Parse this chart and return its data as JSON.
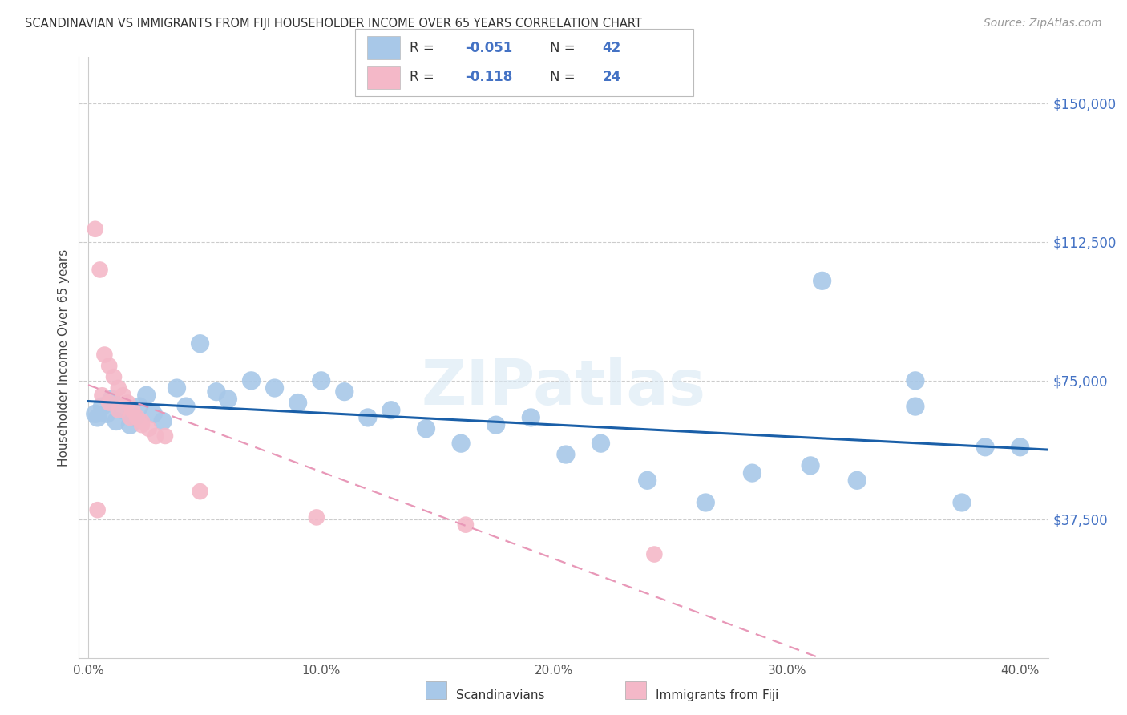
{
  "title": "SCANDINAVIAN VS IMMIGRANTS FROM FIJI HOUSEHOLDER INCOME OVER 65 YEARS CORRELATION CHART",
  "source": "Source: ZipAtlas.com",
  "ylabel": "Householder Income Over 65 years",
  "xlabel_ticks": [
    "0.0%",
    "10.0%",
    "20.0%",
    "30.0%",
    "40.0%"
  ],
  "xlabel_vals": [
    0.0,
    0.1,
    0.2,
    0.3,
    0.4
  ],
  "ytick_labels": [
    "$37,500",
    "$75,000",
    "$112,500",
    "$150,000"
  ],
  "ytick_vals": [
    37500,
    75000,
    112500,
    150000
  ],
  "ylim": [
    0,
    162500
  ],
  "xlim": [
    -0.004,
    0.412
  ],
  "watermark": "ZIPatlas",
  "legend1_color": "#a8c8e8",
  "legend2_color": "#f4b8c8",
  "legend1_label": "Scandinavians",
  "legend2_label": "Immigrants from Fiji",
  "R1": "-0.051",
  "N1": "42",
  "R2": "-0.118",
  "N2": "24",
  "trendline1_color": "#1a5fa8",
  "trendline2_color": "#e898b8",
  "scatter1_color": "#a8c8e8",
  "scatter2_color": "#f4b8c8",
  "scand_x": [
    0.004,
    0.006,
    0.008,
    0.01,
    0.012,
    0.015,
    0.018,
    0.02,
    0.022,
    0.025,
    0.028,
    0.032,
    0.038,
    0.042,
    0.048,
    0.055,
    0.06,
    0.07,
    0.08,
    0.09,
    0.1,
    0.11,
    0.12,
    0.13,
    0.145,
    0.16,
    0.175,
    0.19,
    0.205,
    0.22,
    0.24,
    0.265,
    0.285,
    0.31,
    0.33,
    0.355,
    0.375,
    0.4,
    0.003,
    0.315,
    0.355,
    0.385
  ],
  "scand_y": [
    65000,
    68000,
    66000,
    70000,
    64000,
    67000,
    63000,
    65000,
    68000,
    71000,
    66000,
    64000,
    73000,
    68000,
    85000,
    72000,
    70000,
    75000,
    73000,
    69000,
    75000,
    72000,
    65000,
    67000,
    62000,
    58000,
    63000,
    65000,
    55000,
    58000,
    48000,
    42000,
    50000,
    52000,
    48000,
    68000,
    42000,
    57000,
    66000,
    102000,
    75000,
    57000
  ],
  "fiji_x": [
    0.003,
    0.005,
    0.007,
    0.009,
    0.011,
    0.013,
    0.015,
    0.017,
    0.019,
    0.021,
    0.023,
    0.026,
    0.029,
    0.033,
    0.004,
    0.006,
    0.009,
    0.013,
    0.018,
    0.023,
    0.048,
    0.098,
    0.162,
    0.243
  ],
  "fiji_y": [
    116000,
    105000,
    82000,
    79000,
    76000,
    73000,
    71000,
    69000,
    67000,
    65000,
    64000,
    62000,
    60000,
    60000,
    40000,
    71000,
    69000,
    67000,
    65000,
    63000,
    45000,
    38000,
    36000,
    28000
  ]
}
